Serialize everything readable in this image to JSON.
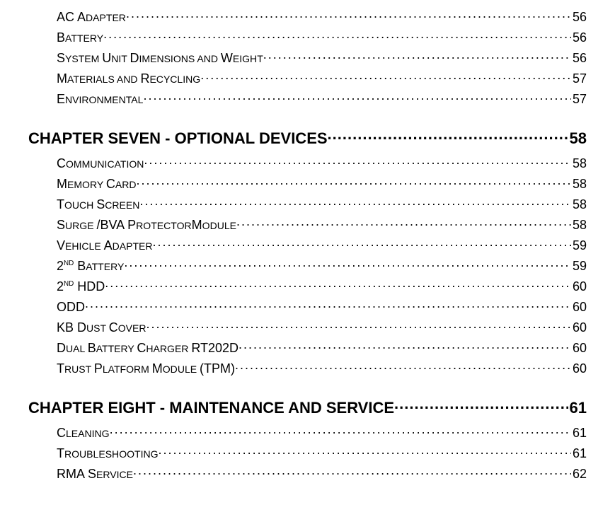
{
  "text_color": "#000000",
  "background_color": "#ffffff",
  "body_fontsize": 18,
  "chapter_fontsize": 22,
  "entries": [
    {
      "first": "AC A",
      "rest": "DAPTER",
      "page": "56"
    },
    {
      "first": "B",
      "rest": "ATTERY",
      "page": "56"
    },
    {
      "first": "S",
      "rest": "YSTEM ",
      "first2": "U",
      "rest2": "NIT ",
      "first3": "D",
      "rest3": "IMENSIONS AND ",
      "first4": "W",
      "rest4": "EIGHT",
      "page": "56"
    },
    {
      "first": "M",
      "rest": "ATERIALS AND ",
      "first2": "R",
      "rest2": "ECYCLING",
      "page": "57"
    },
    {
      "first": "E",
      "rest": "NVIRONMENTAL",
      "page": "57"
    }
  ],
  "chapter7": {
    "label": "CHAPTER SEVEN - OPTIONAL DEVICES",
    "page": "58"
  },
  "ch7_entries": [
    {
      "first": "C",
      "rest": "OMMUNICATION",
      "page": "58"
    },
    {
      "first": "M",
      "rest": "EMORY ",
      "first2": "C",
      "rest2": "ARD",
      "page": "58"
    },
    {
      "first": "T",
      "rest": "OUCH ",
      "first2": "S",
      "rest2": "CREEN",
      "page": "58"
    },
    {
      "first": "S",
      "rest": "URGE ",
      "first2": "P",
      "rest2": "ROTECTOR",
      "suffix": "/BVA ",
      "first3": "M",
      "rest3": "ODULE",
      "page": "58"
    },
    {
      "first": "V",
      "rest": "EHICLE ",
      "first2": "A",
      "rest2": "DAPTER",
      "page": "59"
    },
    {
      "raw_prefix": "2",
      "ord": "ND",
      "first": " B",
      "rest": "ATTERY",
      "page": "59"
    },
    {
      "raw_prefix": "2",
      "ord": "ND",
      "plain": " HDD",
      "page": "60"
    },
    {
      "plain": "ODD",
      "page": "60"
    },
    {
      "first": "KB D",
      "rest": "UST ",
      "first2": "C",
      "rest2": "OVER",
      "page": "60"
    },
    {
      "first": "D",
      "rest": "UAL ",
      "first2": "B",
      "rest2": "ATTERY ",
      "first3": "C",
      "rest3": "HARGER ",
      "plain": "RT202D",
      "page": "60"
    },
    {
      "first": "T",
      "rest": "RUST ",
      "first2": "P",
      "rest2": "LATFORM ",
      "first3": "M",
      "rest3": "ODULE ",
      "plain": "(TPM)",
      "page": "60"
    }
  ],
  "chapter8": {
    "label": "CHAPTER EIGHT - MAINTENANCE AND SERVICE",
    "page": "61"
  },
  "ch8_entries": [
    {
      "first": "C",
      "rest": "LEANING",
      "page": "61"
    },
    {
      "first": "T",
      "rest": "ROUBLESHOOTING",
      "page": "61"
    },
    {
      "first": "RMA S",
      "rest": "ERVICE",
      "page": "62"
    }
  ]
}
